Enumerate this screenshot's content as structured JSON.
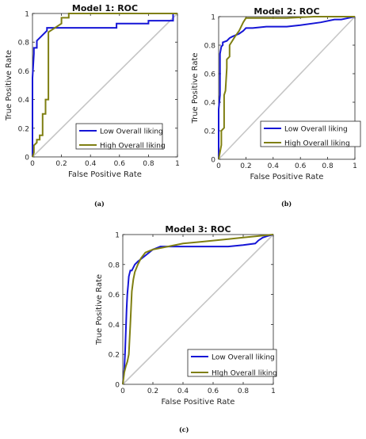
{
  "captions": [
    "(a)",
    "(b)",
    "(c)"
  ],
  "colors": {
    "low": "#1515d6",
    "high": "#7f7f12",
    "diagonal": "#c6c6c6"
  },
  "chart_data": [
    {
      "type": "line",
      "title": "Model 1: ROC",
      "xlabel": "False Positive Rate",
      "ylabel": "True Positive Rate",
      "xlim": [
        0,
        1
      ],
      "ylim": [
        0,
        1
      ],
      "xticks": [
        "0",
        "0.2",
        "0.4",
        "0.6",
        "0.8",
        "1"
      ],
      "yticks": [
        "0",
        "0.2",
        "0.4",
        "0.6",
        "0.8",
        "1"
      ],
      "grid": false,
      "legend_position": "bottom-right",
      "diagonal": true,
      "series": [
        {
          "name": "Low Overall liking",
          "color_key": "low",
          "x": [
            0,
            0,
            0.01,
            0.01,
            0.03,
            0.03,
            0.1,
            0.1,
            0.58,
            0.58,
            0.8,
            0.8,
            0.97,
            0.97,
            1
          ],
          "y": [
            0,
            0.55,
            0.72,
            0.76,
            0.76,
            0.81,
            0.88,
            0.9,
            0.9,
            0.93,
            0.93,
            0.95,
            0.95,
            1,
            1
          ]
        },
        {
          "name": "High Overall liking",
          "color_key": "high",
          "x": [
            0,
            0.01,
            0.01,
            0.03,
            0.03,
            0.05,
            0.05,
            0.07,
            0.07,
            0.09,
            0.09,
            0.11,
            0.11,
            0.2,
            0.2,
            0.25,
            0.25,
            1
          ],
          "y": [
            0,
            0.03,
            0.08,
            0.1,
            0.12,
            0.12,
            0.15,
            0.15,
            0.3,
            0.3,
            0.4,
            0.4,
            0.87,
            0.93,
            0.97,
            0.97,
            1,
            1
          ]
        }
      ]
    },
    {
      "type": "line",
      "title": "Model 2: ROC",
      "xlabel": "False Positive Rate",
      "ylabel": "True Positive Rate",
      "xlim": [
        0,
        1
      ],
      "ylim": [
        0,
        1
      ],
      "xticks": [
        "0",
        "0.2",
        "0.4",
        "0.6",
        "0.8",
        "1"
      ],
      "yticks": [
        "0",
        "0.2",
        "0.4",
        "0.6",
        "0.8",
        "1"
      ],
      "grid": false,
      "legend_position": "bottom-right",
      "diagonal": true,
      "series": [
        {
          "name": "Low Overall liking",
          "color_key": "low",
          "x": [
            0,
            0,
            0.01,
            0.01,
            0.02,
            0.03,
            0.03,
            0.06,
            0.08,
            0.1,
            0.15,
            0.18,
            0.2,
            0.25,
            0.35,
            0.5,
            0.6,
            0.75,
            0.85,
            0.9,
            0.95,
            1
          ],
          "y": [
            0,
            0.35,
            0.45,
            0.74,
            0.79,
            0.8,
            0.82,
            0.83,
            0.85,
            0.86,
            0.88,
            0.9,
            0.92,
            0.92,
            0.93,
            0.93,
            0.94,
            0.96,
            0.98,
            0.98,
            0.99,
            1
          ]
        },
        {
          "name": "High Overall liking",
          "color_key": "high",
          "x": [
            0,
            0.01,
            0.02,
            0.02,
            0.04,
            0.04,
            0.05,
            0.06,
            0.06,
            0.08,
            0.08,
            0.1,
            0.12,
            0.15,
            0.18,
            0.2,
            0.3,
            0.5,
            0.7,
            0.9,
            1
          ],
          "y": [
            0,
            0.05,
            0.1,
            0.2,
            0.22,
            0.45,
            0.48,
            0.64,
            0.7,
            0.72,
            0.8,
            0.83,
            0.86,
            0.9,
            0.96,
            0.99,
            0.99,
            0.99,
            1,
            1,
            1
          ]
        }
      ]
    },
    {
      "type": "line",
      "title": "Model 3: ROC",
      "xlabel": "False Positive Rate",
      "ylabel": "True Positive Rate",
      "xlim": [
        0,
        1
      ],
      "ylim": [
        0,
        1
      ],
      "xticks": [
        "0",
        "0.2",
        "0.4",
        "0.6",
        "0.8",
        "1"
      ],
      "yticks": [
        "0",
        "0.2",
        "0.4",
        "0.6",
        "0.8",
        "1"
      ],
      "grid": false,
      "legend_position": "bottom-right",
      "diagonal": true,
      "series": [
        {
          "name": "Low Overall liking",
          "color_key": "low",
          "x": [
            0,
            0.005,
            0.01,
            0.015,
            0.02,
            0.025,
            0.03,
            0.035,
            0.04,
            0.05,
            0.06,
            0.08,
            0.1,
            0.15,
            0.2,
            0.25,
            0.35,
            0.5,
            0.7,
            0.8,
            0.88,
            0.9,
            0.93,
            0.96,
            1
          ],
          "y": [
            0,
            0.06,
            0.1,
            0.2,
            0.35,
            0.5,
            0.6,
            0.66,
            0.72,
            0.76,
            0.76,
            0.8,
            0.82,
            0.86,
            0.9,
            0.92,
            0.92,
            0.92,
            0.92,
            0.93,
            0.94,
            0.96,
            0.98,
            0.99,
            1
          ]
        },
        {
          "name": "HIgh Overall liking",
          "color_key": "high",
          "x": [
            0,
            0.01,
            0.02,
            0.03,
            0.04,
            0.05,
            0.06,
            0.07,
            0.08,
            0.1,
            0.12,
            0.15,
            0.2,
            0.3,
            0.4,
            0.5,
            0.6,
            0.7,
            0.8,
            0.9,
            0.95,
            1
          ],
          "y": [
            0,
            0.08,
            0.12,
            0.15,
            0.2,
            0.4,
            0.62,
            0.7,
            0.75,
            0.8,
            0.84,
            0.88,
            0.9,
            0.92,
            0.94,
            0.95,
            0.96,
            0.97,
            0.98,
            0.99,
            0.995,
            1
          ]
        }
      ]
    }
  ]
}
